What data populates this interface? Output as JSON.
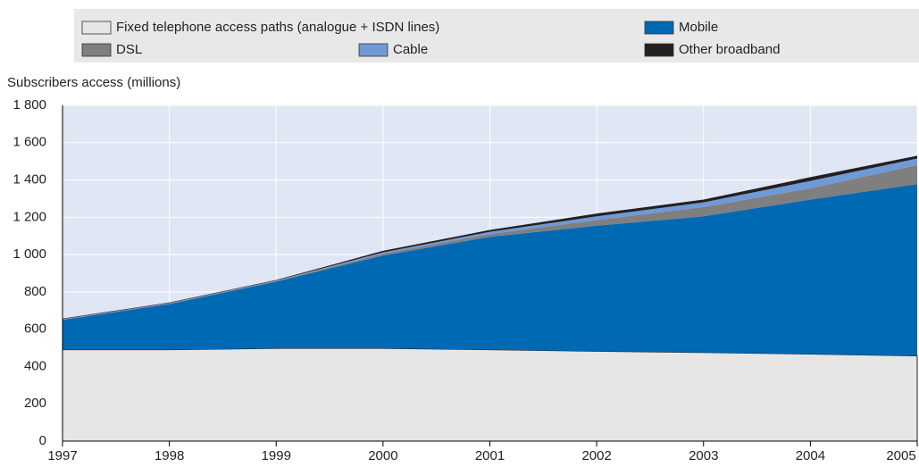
{
  "chart_data": {
    "type": "stacked_area",
    "ylabel": "Subscribers access (millions)",
    "x": [
      1997,
      1998,
      1999,
      2000,
      2001,
      2002,
      2003,
      2004,
      2005
    ],
    "xlim": [
      1997,
      2005
    ],
    "xticks": [
      1997,
      1998,
      1999,
      2000,
      2001,
      2002,
      2003,
      2004,
      2005
    ],
    "ylim": [
      0,
      1800
    ],
    "yticks": [
      0,
      200,
      400,
      600,
      800,
      {
        "value": 1000,
        "label": "1 000"
      },
      {
        "value": 1200,
        "label": "1 200"
      },
      {
        "value": 1400,
        "label": "1 400"
      },
      {
        "value": 1600,
        "label": "1 600"
      },
      {
        "value": 1800,
        "label": "1 800"
      }
    ],
    "series": [
      {
        "name": "Fixed telephone access paths (analogue + ISDN lines)",
        "color": "#e6e6e6",
        "values": [
          490,
          490,
          497,
          497,
          490,
          482,
          475,
          467,
          457
        ]
      },
      {
        "name": "Mobile",
        "color": "#0069b4",
        "values": [
          160,
          245,
          358,
          498,
          605,
          673,
          730,
          828,
          921
        ]
      },
      {
        "name": "DSL",
        "color": "#7f7f7f",
        "values": [
          2,
          2,
          3,
          10,
          15,
          30,
          50,
          60,
          102
        ]
      },
      {
        "name": "Cable",
        "color": "#6f9ad6",
        "values": [
          2,
          3,
          3,
          7,
          12,
          20,
          25,
          40,
          35
        ]
      },
      {
        "name": "Other broadband",
        "color": "#231f20",
        "values": [
          3,
          3,
          3,
          8,
          10,
          15,
          15,
          20,
          15
        ]
      }
    ]
  }
}
